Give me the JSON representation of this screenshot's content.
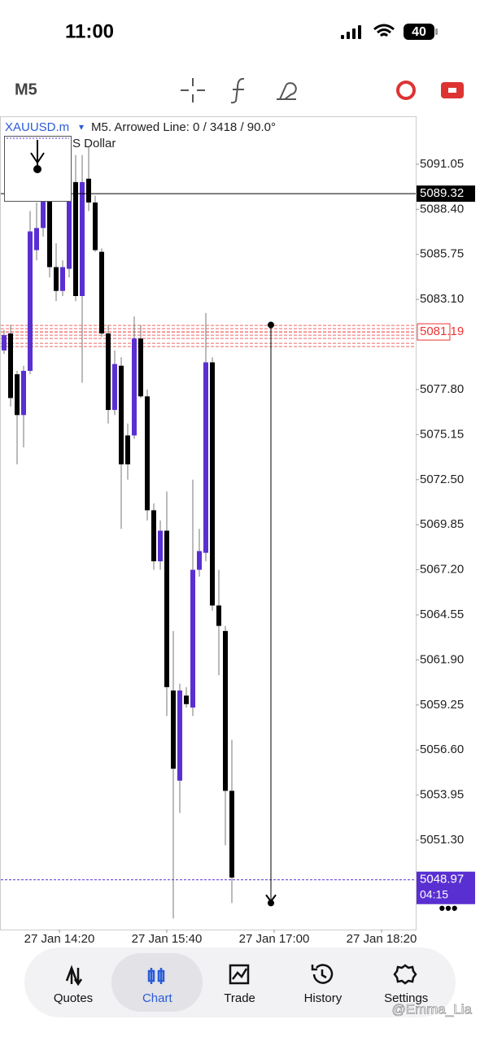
{
  "status_bar": {
    "time": "11:00",
    "battery": "40"
  },
  "toolbar": {
    "timeframe": "M5"
  },
  "chart_header": {
    "symbol": "XAUUSD.m",
    "info": "M5. Arrowed Line: 0 / 3418 / 90.0°",
    "description": "S Dollar"
  },
  "chart_data": {
    "type": "candlestick",
    "up_color": "#5a2fd2",
    "down_color": "#000000",
    "open": [
      5080.1,
      5081.1,
      5078.7,
      5076.3,
      5078.9,
      5086.0,
      5087.3,
      5089.0,
      5085.0,
      5083.6,
      5084.9,
      5090.0,
      5083.3,
      5090.2,
      5088.8,
      5085.9,
      5081.1,
      5076.6,
      5079.2,
      5075.1,
      5075.1,
      5080.8,
      5077.4,
      5070.7,
      5067.7,
      5069.5,
      5060.1,
      5054.8,
      5059.8,
      5059.1,
      5067.2,
      5068.2,
      5079.4,
      5065.1,
      5063.6,
      5054.2
    ],
    "high": [
      5081.3,
      5081.6,
      5078.9,
      5079.2,
      5088.3,
      5088.8,
      5091.1,
      5089.7,
      5086.4,
      5085.4,
      5091.1,
      5091.6,
      5091.6,
      5092.1,
      5089.2,
      5086.1,
      5081.6,
      5080.1,
      5079.7,
      5075.8,
      5082.1,
      5081.6,
      5077.8,
      5071.1,
      5070.1,
      5071.8,
      5063.6,
      5060.5,
      5060.3,
      5072.5,
      5069.6,
      5082.3,
      5079.7,
      5067.2,
      5063.9,
      5057.2
    ],
    "low": [
      5079.9,
      5076.8,
      5073.4,
      5074.4,
      5078.7,
      5085.4,
      5086.8,
      5084.4,
      5083.0,
      5083.3,
      5084.4,
      5083.0,
      5078.2,
      5088.3,
      5085.9,
      5080.9,
      5075.8,
      5076.3,
      5069.6,
      5072.5,
      5074.9,
      5077.3,
      5070.1,
      5067.2,
      5067.2,
      5058.6,
      5046.7,
      5052.9,
      5059.1,
      5058.6,
      5066.8,
      5067.7,
      5064.8,
      5061.0,
      5051.0,
      5047.6
    ],
    "close": [
      5081.0,
      5077.3,
      5076.3,
      5078.9,
      5087.1,
      5087.3,
      5089.2,
      5085.0,
      5083.6,
      5085.0,
      5090.0,
      5083.3,
      5090.0,
      5088.8,
      5086.0,
      5081.1,
      5076.6,
      5079.3,
      5073.4,
      5073.4,
      5080.8,
      5077.4,
      5070.7,
      5067.7,
      5069.5,
      5060.3,
      5055.5,
      5060.1,
      5059.3,
      5067.2,
      5068.3,
      5079.4,
      5065.1,
      5063.9,
      5054.2,
      5049.1
    ],
    "ylim": [
      5046.04,
      5093.87
    ],
    "yticks": [
      {
        "value": 5091.05,
        "label": "5091.05"
      },
      {
        "value": 5088.4,
        "label": "5088.40"
      },
      {
        "value": 5085.75,
        "label": "5085.75"
      },
      {
        "value": 5083.1,
        "label": "5083.10"
      },
      {
        "value": 5077.8,
        "label": "5077.80"
      },
      {
        "value": 5075.15,
        "label": "5075.15"
      },
      {
        "value": 5072.5,
        "label": "5072.50"
      },
      {
        "value": 5069.85,
        "label": "5069.85"
      },
      {
        "value": 5067.2,
        "label": "5067.20"
      },
      {
        "value": 5064.55,
        "label": "5064.55"
      },
      {
        "value": 5061.9,
        "label": "5061.90"
      },
      {
        "value": 5059.25,
        "label": "5059.25"
      },
      {
        "value": 5056.6,
        "label": "5056.60"
      },
      {
        "value": 5053.95,
        "label": "5053.95"
      },
      {
        "value": 5051.3,
        "label": "5051.30"
      }
    ],
    "xticks": [
      "27 Jan 14:20",
      "27 Jan 15:40",
      "27 Jan 17:00",
      "27 Jan 18:20"
    ],
    "bid_line": 5089.32,
    "level": 5081.19,
    "current_price": 5048.97,
    "countdown": "04:15",
    "arrow_line": {
      "start": 5081.6,
      "end": 5047.6
    }
  },
  "nav": [
    "Quotes",
    "Chart",
    "Trade",
    "History",
    "Settings"
  ],
  "watermark": "@Emma_Lia"
}
